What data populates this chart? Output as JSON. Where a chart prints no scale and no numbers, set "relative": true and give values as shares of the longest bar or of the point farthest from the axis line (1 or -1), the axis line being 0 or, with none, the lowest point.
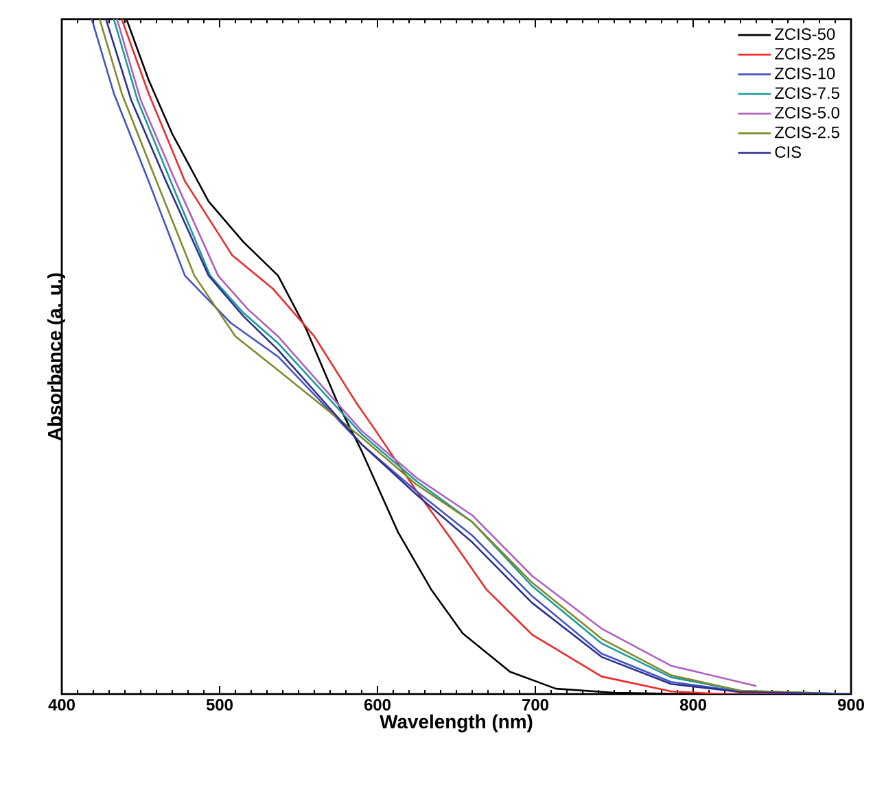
{
  "chart_data": {
    "type": "line",
    "xlabel": "Wavelength (nm)",
    "ylabel": "Absorbance (a. u.)",
    "relative": true,
    "xlim": [
      400,
      900
    ],
    "xticks": [
      400,
      500,
      600,
      700,
      800,
      900
    ],
    "legend": "top right",
    "marker": "none",
    "line_style": "solid",
    "grid": false,
    "series": [
      {
        "name": "ZCIS-50",
        "color": "#000000",
        "x": [
          441,
          455,
          470,
          493,
          515,
          537,
          555,
          575,
          590,
          613,
          634,
          654,
          684,
          713,
          750,
          800,
          900
        ],
        "values": [
          1.0,
          0.91,
          0.83,
          0.73,
          0.67,
          0.62,
          0.54,
          0.43,
          0.36,
          0.24,
          0.155,
          0.09,
          0.033,
          0.008,
          0.002,
          0,
          0
        ]
      },
      {
        "name": "ZCIS-25",
        "color": "#ee2a2a",
        "x": [
          438,
          455,
          478,
          508,
          534,
          560,
          587,
          596,
          625,
          649,
          669,
          698,
          742,
          786,
          820,
          900
        ],
        "values": [
          1.0,
          0.89,
          0.76,
          0.65,
          0.6,
          0.53,
          0.43,
          0.4,
          0.3,
          0.222,
          0.155,
          0.088,
          0.026,
          0.004,
          0,
          0
        ]
      },
      {
        "name": "ZCIS-10",
        "color": "#4454c4",
        "x": [
          419,
          433,
          455,
          478,
          507,
          537,
          590,
          625,
          660,
          698,
          742,
          786,
          830,
          900
        ],
        "values": [
          1.0,
          0.89,
          0.76,
          0.62,
          0.55,
          0.5,
          0.37,
          0.3,
          0.235,
          0.145,
          0.06,
          0.018,
          0.004,
          0
        ]
      },
      {
        "name": "ZCIS-7.5",
        "color": "#1a9a9a",
        "x": [
          433,
          448,
          469,
          494,
          515,
          537,
          590,
          625,
          660,
          698,
          742,
          786,
          830,
          900
        ],
        "values": [
          1.0,
          0.88,
          0.76,
          0.62,
          0.565,
          0.52,
          0.385,
          0.315,
          0.255,
          0.16,
          0.075,
          0.025,
          0.005,
          0
        ]
      },
      {
        "name": "ZCIS-5.0",
        "color": "#b05fc0",
        "x": [
          435,
          450,
          472,
          499,
          518,
          537,
          590,
          625,
          660,
          698,
          742,
          786,
          840
        ],
        "values": [
          1.0,
          0.88,
          0.76,
          0.62,
          0.57,
          0.53,
          0.39,
          0.32,
          0.265,
          0.175,
          0.097,
          0.042,
          0.012
        ]
      },
      {
        "name": "ZCIS-2.5",
        "color": "#808a2a",
        "x": [
          424,
          438,
          460,
          484,
          510,
          537,
          590,
          625,
          660,
          698,
          742,
          786,
          830,
          900
        ],
        "values": [
          1.0,
          0.89,
          0.76,
          0.62,
          0.53,
          0.48,
          0.38,
          0.31,
          0.255,
          0.165,
          0.082,
          0.028,
          0.005,
          0
        ]
      },
      {
        "name": "CIS",
        "color": "#2b2f8f",
        "x": [
          428,
          444,
          466,
          493,
          515,
          537,
          590,
          625,
          660,
          698,
          742,
          786,
          830,
          900
        ],
        "values": [
          1.0,
          0.88,
          0.76,
          0.62,
          0.56,
          0.51,
          0.37,
          0.295,
          0.225,
          0.135,
          0.055,
          0.015,
          0.003,
          0
        ]
      }
    ]
  }
}
